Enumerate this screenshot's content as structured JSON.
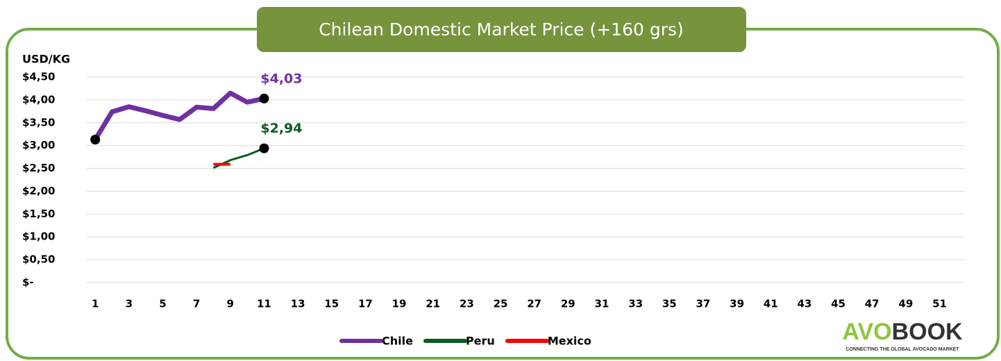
{
  "chart_data": {
    "type": "line",
    "title": "Chilean Domestic Market Price (+160 grs)",
    "y_axis_label": "USD/KG",
    "categories": [
      "1",
      null,
      "3",
      null,
      "5",
      null,
      "7",
      null,
      "9",
      null,
      "11",
      null,
      "13",
      null,
      "15",
      null,
      "17",
      null,
      "19",
      null,
      "21",
      null,
      "23",
      null,
      "25",
      null,
      "27",
      null,
      "29",
      null,
      "31",
      null,
      "33",
      null,
      "35",
      null,
      "37",
      null,
      "39",
      null,
      "41",
      null,
      "43",
      null,
      "45",
      null,
      "47",
      null,
      "49",
      null,
      "51",
      null
    ],
    "series": [
      {
        "name": "Chile",
        "color": "#7030a0",
        "width": 7,
        "marker_points": [
          0,
          10
        ],
        "values": [
          3.13,
          3.74,
          3.85,
          3.76,
          3.66,
          3.57,
          3.84,
          3.81,
          4.15,
          3.95,
          4.03,
          null,
          null,
          null,
          null,
          null,
          null,
          null,
          null,
          null,
          null,
          null,
          null,
          null,
          null,
          null,
          null,
          null,
          null,
          null,
          null,
          null,
          null,
          null,
          null,
          null,
          null,
          null,
          null,
          null,
          null,
          null,
          null,
          null,
          null,
          null,
          null,
          null,
          null,
          null,
          null,
          null
        ],
        "value_labels": [
          null,
          null,
          null,
          null,
          null,
          null,
          null,
          null,
          null,
          null,
          "$4,03",
          null,
          null,
          null,
          null,
          null,
          null,
          null,
          null,
          null,
          null,
          null,
          null,
          null,
          null,
          null,
          null,
          null,
          null,
          null,
          null,
          null,
          null,
          null,
          null,
          null,
          null,
          null,
          null,
          null,
          null,
          null,
          null,
          null,
          null,
          null,
          null,
          null,
          null,
          null,
          null,
          null
        ]
      },
      {
        "name": "Peru",
        "color": "#0b5a1e",
        "width": 3,
        "marker_points": [
          10
        ],
        "values": [
          null,
          null,
          null,
          null,
          null,
          null,
          null,
          2.51,
          2.68,
          2.79,
          2.94,
          null,
          null,
          null,
          null,
          null,
          null,
          null,
          null,
          null,
          null,
          null,
          null,
          null,
          null,
          null,
          null,
          null,
          null,
          null,
          null,
          null,
          null,
          null,
          null,
          null,
          null,
          null,
          null,
          null,
          null,
          null,
          null,
          null,
          null,
          null,
          null,
          null,
          null,
          null,
          null,
          null
        ],
        "value_labels": [
          null,
          null,
          null,
          null,
          null,
          null,
          null,
          null,
          null,
          null,
          "$2,94",
          null,
          null,
          null,
          null,
          null,
          null,
          null,
          null,
          null,
          null,
          null,
          null,
          null,
          null,
          null,
          null,
          null,
          null,
          null,
          null,
          null,
          null,
          null,
          null,
          null,
          null,
          null,
          null,
          null,
          null,
          null,
          null,
          null,
          null,
          null,
          null,
          null,
          null,
          null,
          null,
          null
        ]
      },
      {
        "name": "Mexico",
        "color": "#ff0000",
        "width": 4,
        "marker_points": [],
        "values": [
          null,
          null,
          null,
          null,
          null,
          null,
          null,
          2.59,
          2.59,
          null,
          null,
          null,
          null,
          null,
          null,
          null,
          null,
          null,
          null,
          null,
          null,
          null,
          null,
          null,
          null,
          null,
          null,
          null,
          null,
          null,
          null,
          null,
          null,
          null,
          null,
          null,
          null,
          null,
          null,
          null,
          null,
          null,
          null,
          null,
          null,
          null,
          null,
          null,
          null,
          null,
          null,
          null
        ]
      }
    ],
    "ylim": [
      0,
      4.5
    ],
    "yticks": [
      {
        "value": 0,
        "label": "$-"
      },
      {
        "value": 0.5,
        "label": "$0,50"
      },
      {
        "value": 1,
        "label": "$1,00"
      },
      {
        "value": 1.5,
        "label": "$1,50"
      },
      {
        "value": 2,
        "label": "$2,00"
      },
      {
        "value": 2.5,
        "label": "$2,50"
      },
      {
        "value": 3,
        "label": "$3,00"
      },
      {
        "value": 3.5,
        "label": "$3,50"
      },
      {
        "value": 4,
        "label": "$4,00"
      },
      {
        "value": 4.5,
        "label": "$4,50"
      }
    ],
    "grid": true,
    "legend": "bottom",
    "logo": {
      "part1": "AVO",
      "part2": "BOOK",
      "tagline": "CONNECTING THE GLOBAL AVOCADO MARKET"
    }
  }
}
